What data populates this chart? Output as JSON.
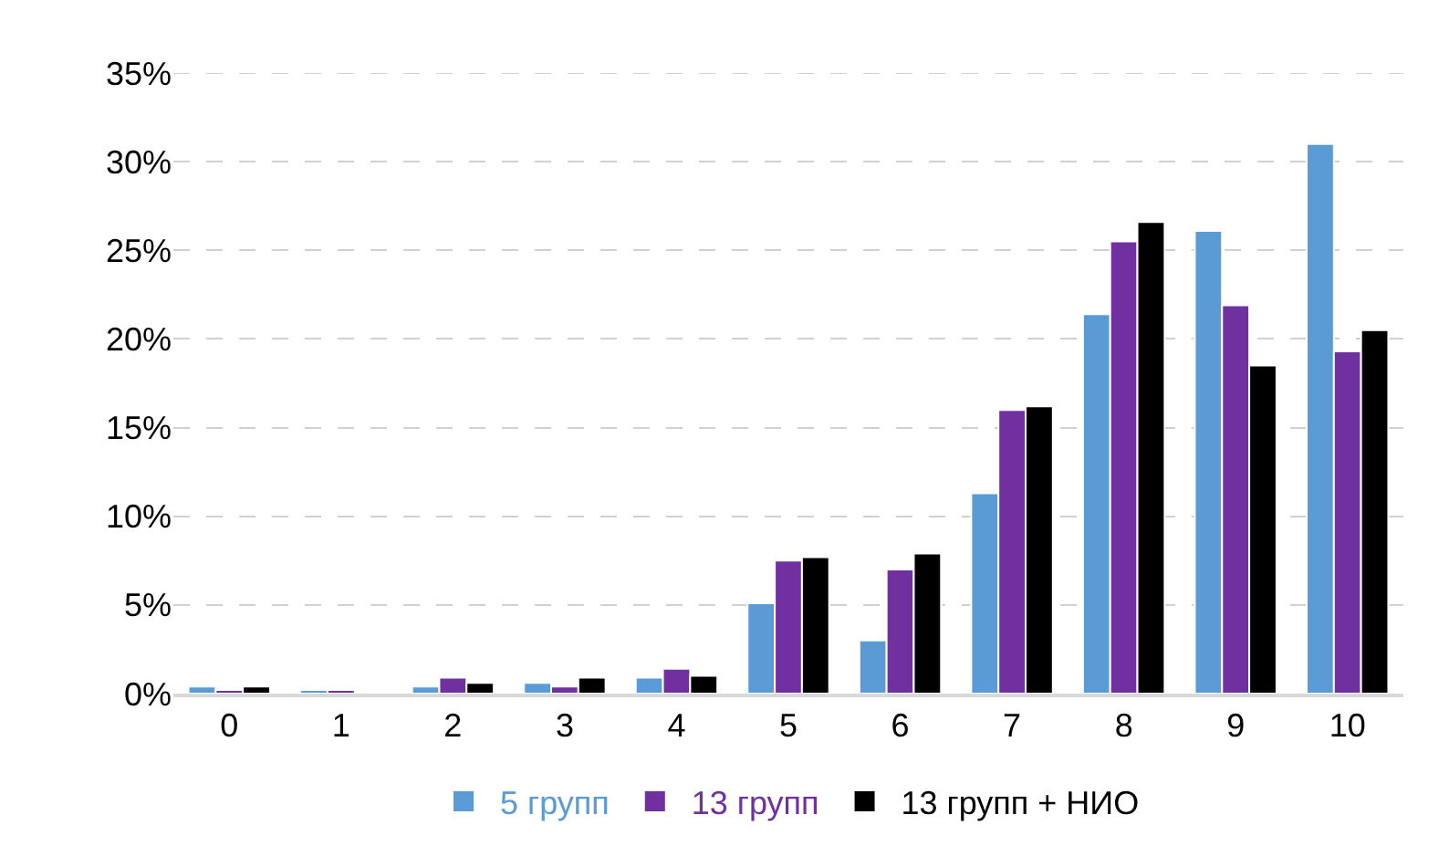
{
  "chart_data": {
    "type": "bar",
    "categories": [
      "0",
      "1",
      "2",
      "3",
      "4",
      "5",
      "6",
      "7",
      "8",
      "9",
      "10"
    ],
    "series": [
      {
        "name": "5 групп",
        "color": "#5b9bd5",
        "values": [
          0.4,
          0.2,
          0.4,
          0.6,
          0.9,
          5.1,
          3.0,
          11.3,
          21.4,
          26.1,
          31.0
        ]
      },
      {
        "name": "13 групп",
        "color": "#7030a0",
        "values": [
          0.2,
          0.2,
          0.9,
          0.4,
          1.4,
          7.5,
          7.0,
          16.0,
          25.5,
          21.9,
          19.3
        ]
      },
      {
        "name": "13 групп + НИО",
        "color": "#000000",
        "values": [
          0.4,
          null,
          0.6,
          0.9,
          1.0,
          7.7,
          7.9,
          16.2,
          26.6,
          18.5,
          20.5
        ]
      }
    ],
    "ylim": [
      0,
      35
    ],
    "yticks": [
      {
        "value": 0,
        "label": "0%"
      },
      {
        "value": 5,
        "label": "5%"
      },
      {
        "value": 10,
        "label": "10%"
      },
      {
        "value": 15,
        "label": "15%"
      },
      {
        "value": 20,
        "label": "20%"
      },
      {
        "value": 25,
        "label": "25%"
      },
      {
        "value": 30,
        "label": "30%"
      },
      {
        "value": 35,
        "label": "35%"
      }
    ],
    "grid": "y",
    "legend": "bottom"
  }
}
